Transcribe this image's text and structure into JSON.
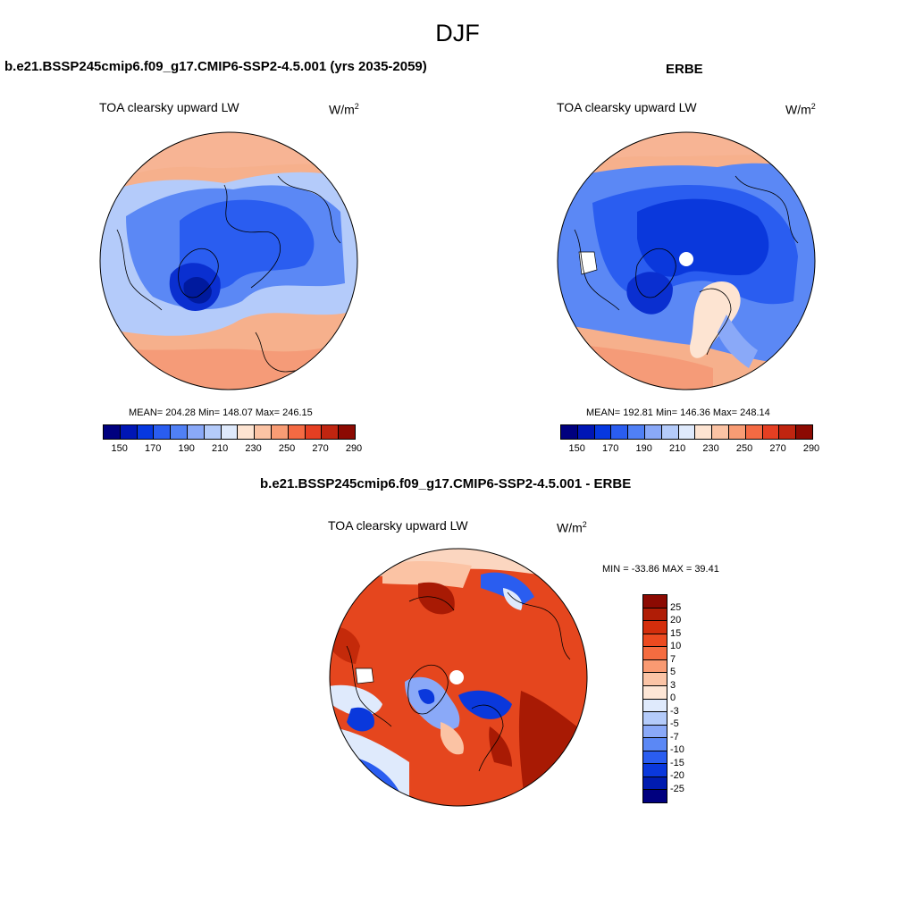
{
  "figure": {
    "season": "DJF"
  },
  "panels": [
    {
      "title": "b.e21.BSSP245cmip6.f09_g17.CMIP6-SSP2-4.5.001 (yrs 2035-2059)",
      "variable": "TOA clearsky upward LW",
      "units_base": "W/m",
      "units_exp": "2",
      "stats": "MEAN= 204.28  Min= 148.07  Max= 246.15",
      "colorbar": {
        "colors": [
          "#00007f",
          "#0016b5",
          "#0638e0",
          "#2a5df0",
          "#5080f5",
          "#8aa9f8",
          "#b4cbfa",
          "#dfeafc",
          "#fde4d2",
          "#fbc3a4",
          "#f89c74",
          "#f46a43",
          "#e53f22",
          "#c02510",
          "#8c0a02"
        ],
        "labels": [
          "150",
          "170",
          "190",
          "210",
          "230",
          "250",
          "270",
          "290"
        ]
      }
    },
    {
      "title": "ERBE",
      "variable": "TOA clearsky upward LW",
      "units_base": "W/m",
      "units_exp": "2",
      "stats": "MEAN= 192.81  Min= 146.36  Max= 248.14",
      "colorbar": {
        "colors": [
          "#00007f",
          "#0016b5",
          "#0638e0",
          "#2a5df0",
          "#5080f5",
          "#8aa9f8",
          "#b4cbfa",
          "#dfeafc",
          "#fde4d2",
          "#fbc3a4",
          "#f89c74",
          "#f46a43",
          "#e53f22",
          "#c02510",
          "#8c0a02"
        ],
        "labels": [
          "150",
          "170",
          "190",
          "210",
          "230",
          "250",
          "270",
          "290"
        ]
      }
    },
    {
      "title": "b.e21.BSSP245cmip6.f09_g17.CMIP6-SSP2-4.5.001 - ERBE",
      "variable": "TOA clearsky upward LW",
      "units_base": "W/m",
      "units_exp": "2",
      "stats": "MIN = -33.86 MAX =  39.41",
      "colorbar": {
        "colors": [
          "#8c0a02",
          "#b01d06",
          "#d42e0c",
          "#ec4a20",
          "#f56c40",
          "#f99a72",
          "#fbc4a6",
          "#fde6d6",
          "#dfeafc",
          "#b4cbfa",
          "#8aa9f8",
          "#5b88f5",
          "#2a5df0",
          "#0a38dc",
          "#001cb0",
          "#00007f"
        ],
        "labels": [
          "25",
          "20",
          "15",
          "10",
          "7",
          "5",
          "3",
          "0",
          "-3",
          "-5",
          "-7",
          "-10",
          "-15",
          "-20",
          "-25"
        ]
      }
    }
  ]
}
